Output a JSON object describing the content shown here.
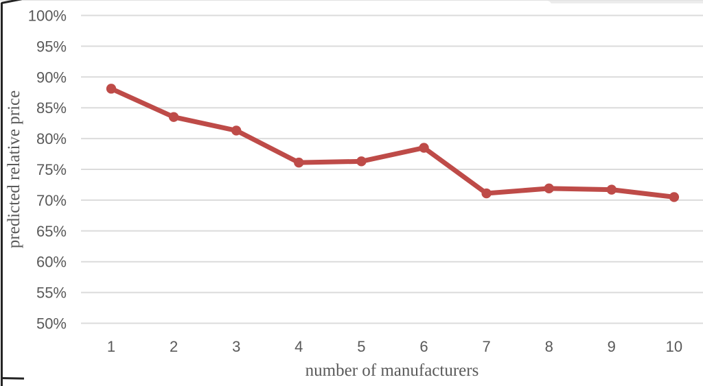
{
  "chart_data": {
    "type": "line",
    "title": "",
    "xlabel": "number of manufacturers",
    "ylabel": "predicted relative price",
    "categories": [
      1,
      2,
      3,
      4,
      5,
      6,
      7,
      8,
      9,
      10
    ],
    "series": [
      {
        "name": "predicted relative price",
        "values": [
          88.1,
          83.5,
          81.3,
          76.1,
          76.3,
          78.5,
          71.1,
          71.9,
          71.7,
          70.5
        ],
        "color": "#BE4B48",
        "marker": "circle"
      }
    ],
    "ylim": [
      50,
      100
    ],
    "ytick_step": 5,
    "ytick_labels": [
      "100%",
      "95%",
      "90%",
      "85%",
      "80%",
      "75%",
      "70%",
      "65%",
      "60%",
      "55%",
      "50%"
    ],
    "xtick_labels": [
      "1",
      "2",
      "3",
      "4",
      "5",
      "6",
      "7",
      "8",
      "9",
      "10"
    ],
    "grid": "horizontal-only",
    "legend": "none"
  },
  "colors": {
    "background": "#ffffff",
    "gridline": "#dbdbdb",
    "tick_label": "#595959",
    "axis_title": "#595959",
    "series": "#BE4B48",
    "page_edge": "#242424",
    "top_strip": "#ececec"
  }
}
